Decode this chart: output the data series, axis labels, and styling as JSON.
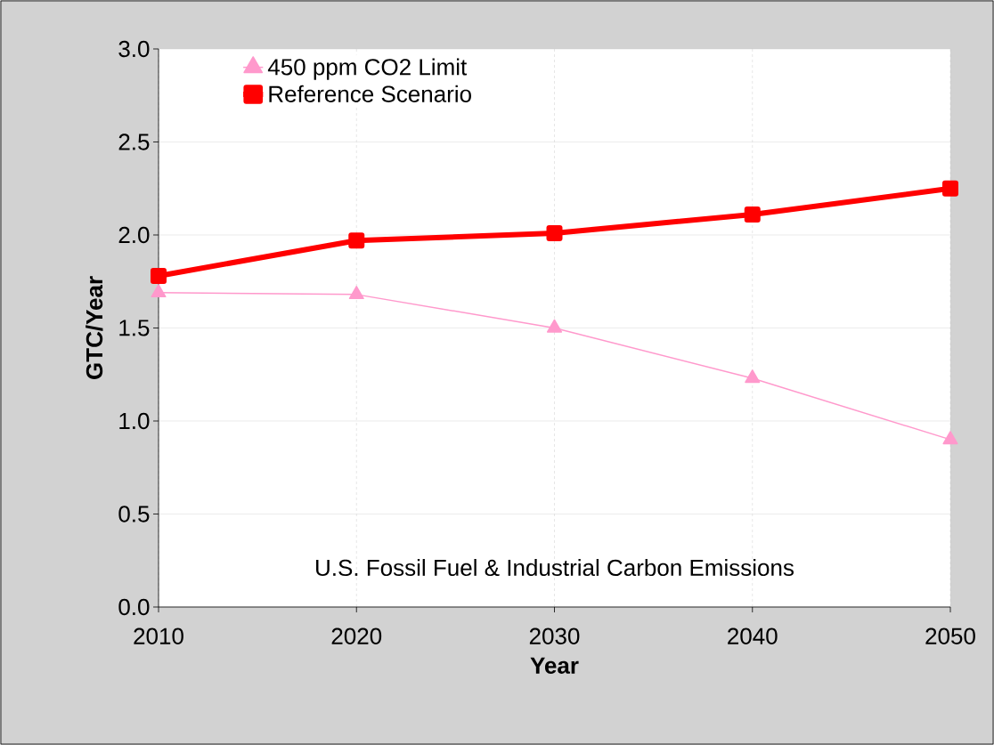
{
  "chart_data": {
    "type": "line",
    "xlabel": "Year",
    "ylabel": "GTC/Year",
    "x": [
      2010,
      2020,
      2030,
      2040,
      2050
    ],
    "series": [
      {
        "name": "450 ppm CO2 Limit",
        "color": "#ff99cc",
        "marker": "triangle",
        "values": [
          1.69,
          1.68,
          1.5,
          1.23,
          0.9
        ]
      },
      {
        "name": "Reference Scenario",
        "color": "#ff0000",
        "marker": "square",
        "values": [
          1.78,
          1.97,
          2.01,
          2.11,
          2.25
        ]
      }
    ],
    "xlim": [
      2010,
      2050
    ],
    "xticks": [
      2010,
      2020,
      2030,
      2040,
      2050
    ],
    "ylim": [
      0,
      3
    ],
    "yticks": [
      {
        "value": 0,
        "label": "0.0"
      },
      {
        "value": 0.5,
        "label": "0.5"
      },
      {
        "value": 1,
        "label": "1.0"
      },
      {
        "value": 1.5,
        "label": "1.5"
      },
      {
        "value": 2,
        "label": "2.0"
      },
      {
        "value": 2.5,
        "label": "2.5"
      },
      {
        "value": 3,
        "label": "3.0"
      }
    ],
    "grid": true,
    "legend": "top left",
    "annotations": [
      "U.S. Fossil Fuel & Industrial Carbon Emissions"
    ]
  }
}
